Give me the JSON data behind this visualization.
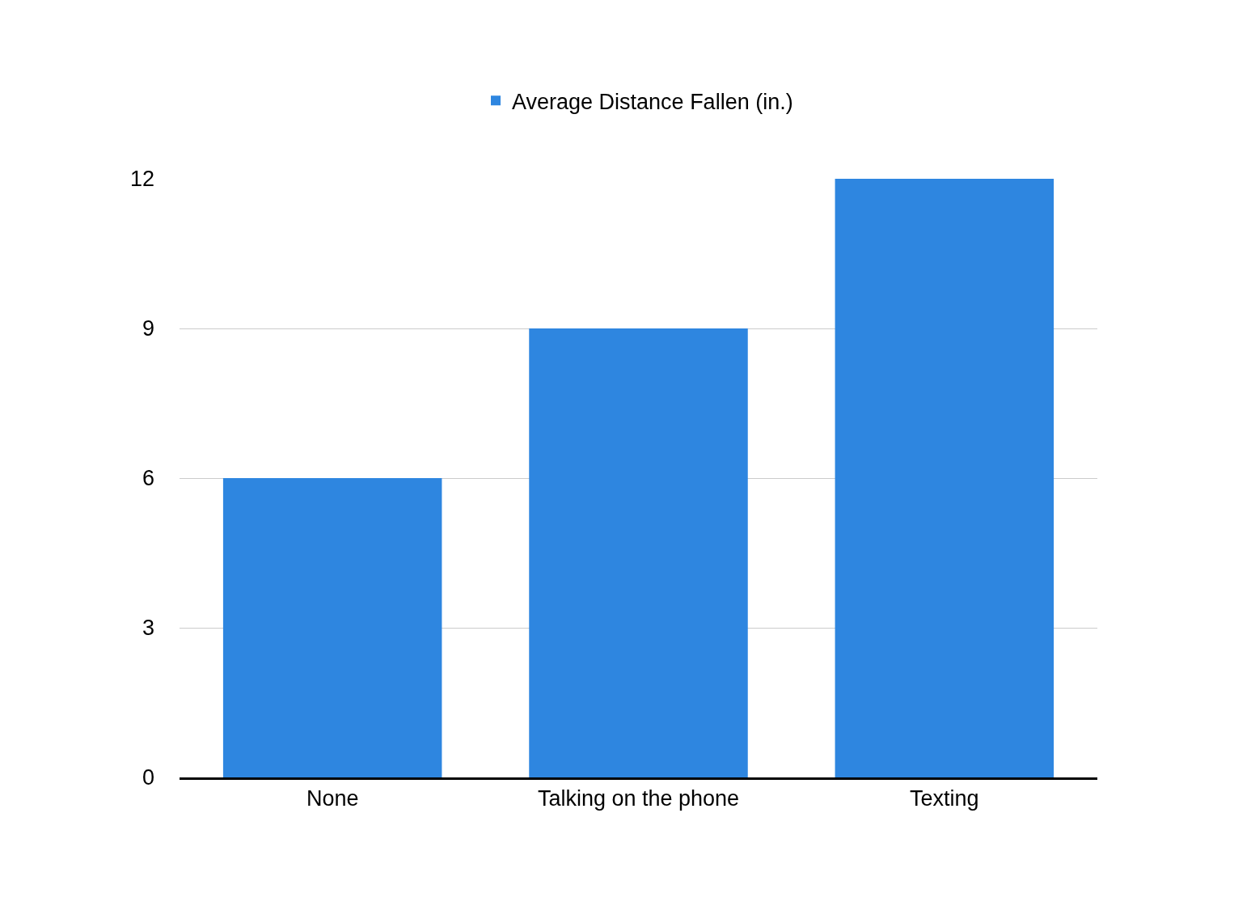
{
  "chart_data": {
    "type": "bar",
    "categories": [
      "None",
      "Talking on the phone",
      "Texting"
    ],
    "series": [
      {
        "name": "Average Distance Fallen (in.)",
        "color": "#2e86e0",
        "values": [
          6,
          9,
          12
        ]
      }
    ],
    "ylim": [
      0,
      12
    ],
    "yticks": [
      0,
      3,
      6,
      9,
      12
    ],
    "grid": "y",
    "legend": "top"
  }
}
